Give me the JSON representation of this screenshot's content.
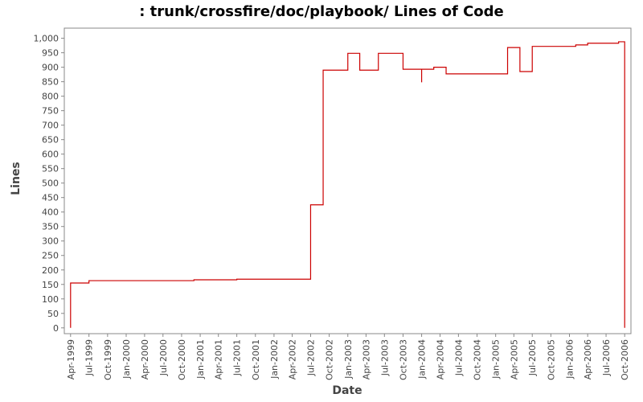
{
  "chart_data": {
    "type": "step",
    "title": ": trunk/crossfire/doc/playbook/ Lines of Code",
    "x_label": "Date",
    "y_label": "Lines",
    "x": [
      "Apr-1999",
      "Apr-1999",
      "Jul-1999",
      "Dec-2000",
      "Jul-2001",
      "Jul-2002",
      "Sep-2002",
      "Jan-2003",
      "Mar-2003",
      "Jun-2003",
      "Oct-2003",
      "Jan-2004",
      "Jan-2004",
      "Mar-2004",
      "May-2004",
      "Mar-2005",
      "May-2005",
      "Jul-2005",
      "Feb-2006",
      "Apr-2006",
      "Sep-2006",
      "Oct-2006"
    ],
    "series": [
      {
        "color": "#cc0000",
        "values": [
          0,
          155,
          163,
          166,
          168,
          425,
          890,
          948,
          890,
          948,
          893,
          848,
          893,
          900,
          877,
          968,
          885,
          972,
          977,
          983,
          988,
          0
        ]
      }
    ],
    "xlim": [
      "Mar-1999",
      "Nov-2006"
    ],
    "xticks": [
      "Apr-1999",
      "Jul-1999",
      "Oct-1999",
      "Jan-2000",
      "Apr-2000",
      "Jul-2000",
      "Oct-2000",
      "Jan-2001",
      "Apr-2001",
      "Jul-2001",
      "Oct-2001",
      "Jan-2002",
      "Apr-2002",
      "Jul-2002",
      "Oct-2002",
      "Jan-2003",
      "Apr-2003",
      "Jul-2003",
      "Oct-2003",
      "Jan-2004",
      "Apr-2004",
      "Jul-2004",
      "Oct-2004",
      "Jan-2005",
      "Apr-2005",
      "Jul-2005",
      "Oct-2005",
      "Jan-2006",
      "Apr-2006",
      "Jul-2006",
      "Oct-2006"
    ],
    "ylim": [
      -20,
      1035
    ],
    "yticks": [
      0,
      50,
      100,
      150,
      200,
      250,
      300,
      350,
      400,
      450,
      500,
      550,
      600,
      650,
      700,
      750,
      800,
      850,
      900,
      950,
      {
        "value": 1000,
        "label": "1,000"
      }
    ],
    "grid": false
  }
}
